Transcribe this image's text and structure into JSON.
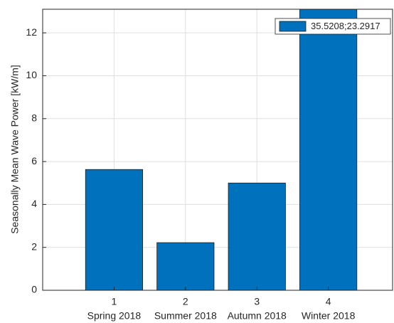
{
  "chart_data": {
    "type": "bar",
    "y_label": "Seasonally Mean Wave Power [kW/m]",
    "x": [
      1,
      2,
      3,
      4
    ],
    "categories": [
      "Spring 2018",
      "Summer 2018",
      "Autumn 2018",
      "Winter 2018"
    ],
    "series": [
      {
        "name": "35.5208;23.2917",
        "color": "#0072bd",
        "values": [
          5.63,
          2.22,
          5.0,
          13.5
        ]
      }
    ],
    "xlim": [
      0,
      4.9
    ],
    "xticks": [
      1,
      2,
      3,
      4
    ],
    "ylim": [
      0,
      13.1
    ],
    "yticks": [
      0,
      2,
      4,
      6,
      8,
      10,
      12
    ],
    "grid": true,
    "legend": "top-right"
  }
}
